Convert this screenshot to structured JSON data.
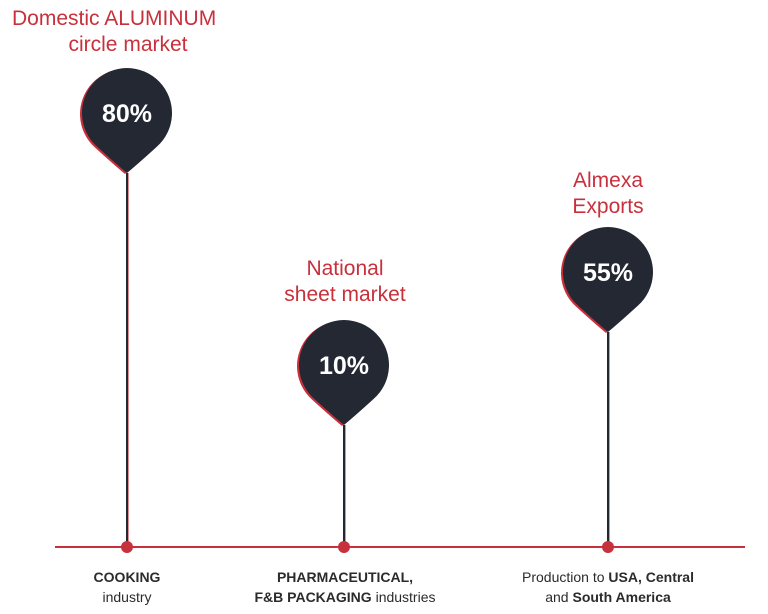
{
  "colors": {
    "accent": "#c8303c",
    "pin": "#232833",
    "text": "#2b2b2b"
  },
  "markers": [
    {
      "title": [
        "Domestic ALUMINUM",
        "circle market"
      ],
      "value": "80%",
      "caption": [
        [
          {
            "t": "COOKING",
            "b": true
          }
        ],
        [
          {
            "t": "industry",
            "b": false
          }
        ]
      ]
    },
    {
      "title": [
        "National",
        "sheet market"
      ],
      "value": "10%",
      "caption": [
        [
          {
            "t": "PHARMACEUTICAL,",
            "b": true
          }
        ],
        [
          {
            "t": "F&B PACKAGING",
            "b": true
          },
          {
            "t": " industries",
            "b": false
          }
        ]
      ]
    },
    {
      "title": [
        "Almexa",
        "Exports"
      ],
      "value": "55%",
      "caption": [
        [
          {
            "t": "Production to ",
            "b": false
          },
          {
            "t": "USA, Central",
            "b": true
          }
        ],
        [
          {
            "t": "and ",
            "b": false
          },
          {
            "t": "South America",
            "b": true
          }
        ]
      ]
    }
  ]
}
